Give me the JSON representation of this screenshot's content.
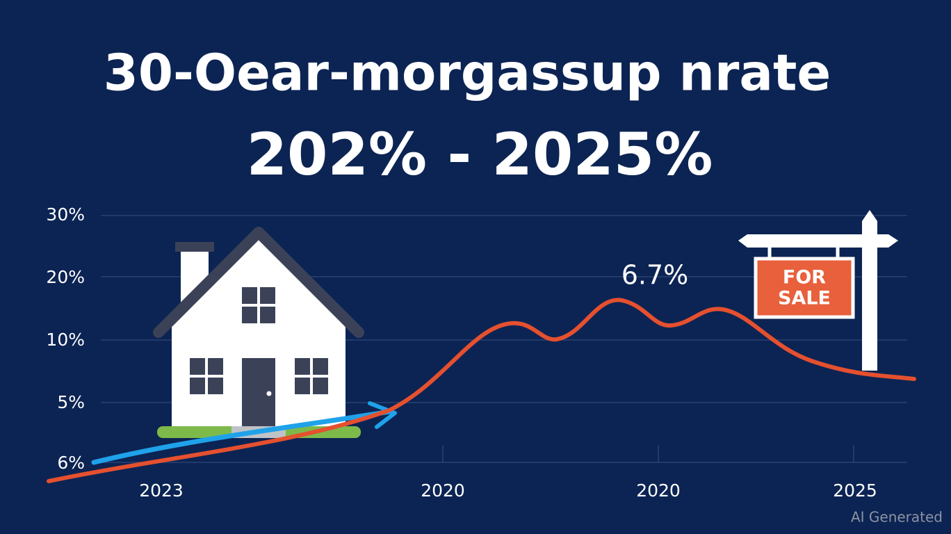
{
  "title": {
    "line1": "30-Oear-morgassup nrate",
    "line2": "202% - 2025%"
  },
  "y_axis_labels": [
    "30%",
    "20%",
    "10%",
    "5%",
    "6%"
  ],
  "x_axis_labels": [
    "2023",
    "2020",
    "2020",
    "2025"
  ],
  "callout": "6.7%",
  "sign": {
    "line1": "FOR",
    "line2": "SALE"
  },
  "watermark": "AI Generated"
}
